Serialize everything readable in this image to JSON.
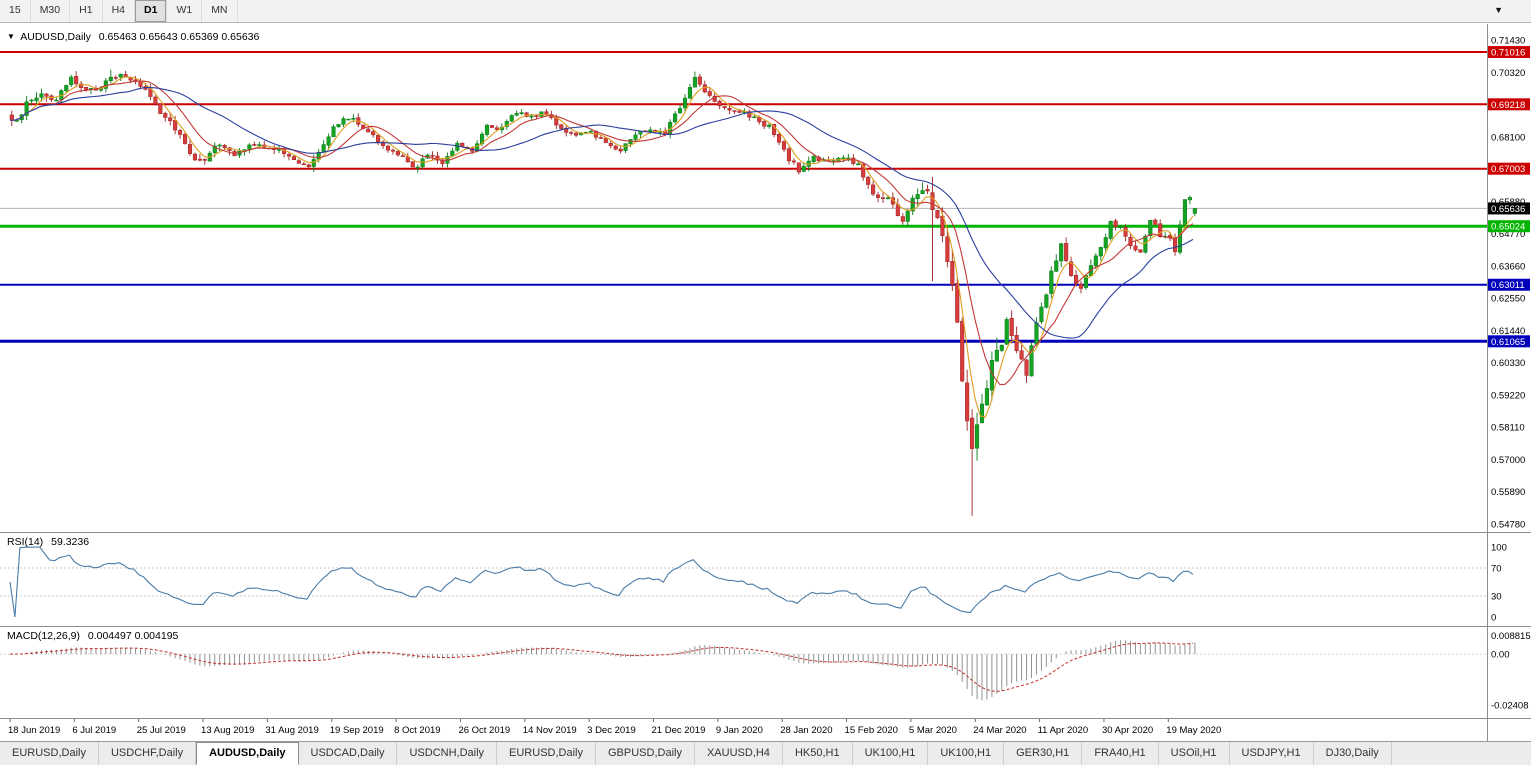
{
  "toolbar": {
    "timeframes": [
      "15",
      "M30",
      "H1",
      "H4",
      "D1",
      "W1",
      "MN"
    ],
    "active": "D1"
  },
  "chart_header": {
    "title": "AUDUSD,Daily",
    "ohlc": "0.65463 0.65643 0.65369 0.65636"
  },
  "price_axis": {
    "max": 0.7143,
    "min": 0.5478,
    "step": 0.0111,
    "decimals": 5
  },
  "levels": [
    {
      "value": 0.71016,
      "color": "#cc0000",
      "width": 2
    },
    {
      "value": 0.69218,
      "color": "#cc0000",
      "width": 2
    },
    {
      "value": 0.67003,
      "color": "#cc0000",
      "width": 2
    },
    {
      "value": 0.65024,
      "color": "#00b400",
      "width": 3
    },
    {
      "value": 0.63011,
      "color": "#0000bb",
      "width": 2
    },
    {
      "value": 0.61065,
      "color": "#0000bb",
      "width": 3
    }
  ],
  "bid": {
    "value": 0.65636,
    "line_color": "#b4b4b4",
    "label_bg": "#000000"
  },
  "indicators": {
    "rsi": {
      "label": "RSI(14)",
      "value": "59.3236",
      "axis": [
        100,
        70,
        30,
        0
      ],
      "guides": [
        70,
        30
      ],
      "line_color": "#4a7ba8"
    },
    "macd": {
      "label": "MACD(12,26,9)",
      "value": "0.004497 0.004195",
      "axis": [
        {
          "v": 0.008815,
          "t": "0.008815"
        },
        {
          "v": 0,
          "t": "0.00"
        },
        {
          "v": -0.02408,
          "t": "-0.02408"
        }
      ],
      "histogram_color": "#909090",
      "signal_color": "#c03030"
    }
  },
  "time_axis": {
    "step": 13,
    "dates": [
      "18 Jun 2019",
      "6 Jul 2019",
      "25 Jul 2019",
      "13 Aug 2019",
      "31 Aug 2019",
      "19 Sep 2019",
      "8 Oct 2019",
      "26 Oct 2019",
      "14 Nov 2019",
      "3 Dec 2019",
      "21 Dec 2019",
      "9 Jan 2020",
      "28 Jan 2020",
      "15 Feb 2020",
      "5 Mar 2020",
      "24 Mar 2020",
      "11 Apr 2020",
      "30 Apr 2020",
      "19 May 2020"
    ]
  },
  "tabs": [
    {
      "label": "EURUSD,Daily"
    },
    {
      "label": "USDCHF,Daily"
    },
    {
      "label": "AUDUSD,Daily",
      "active": true
    },
    {
      "label": "USDCAD,Daily"
    },
    {
      "label": "USDCNH,Daily"
    },
    {
      "label": "EURUSD,Daily"
    },
    {
      "label": "GBPUSD,Daily"
    },
    {
      "label": "XAUUSD,H4"
    },
    {
      "label": "HK50,H1"
    },
    {
      "label": "UK100,H1"
    },
    {
      "label": "UK100,H1"
    },
    {
      "label": "GER30,H1"
    },
    {
      "label": "FRA40,H1"
    },
    {
      "label": "USOil,H1"
    },
    {
      "label": "USDJPY,H1"
    },
    {
      "label": "DJ30,Daily"
    }
  ],
  "colors": {
    "bull": "#14a424",
    "bull_dark": "#0b7a18",
    "bear": "#d83c3c",
    "bear_dark": "#9c2323",
    "background": "#ffffff",
    "panel_border": "#8c8c8c"
  },
  "chart_data": {
    "type": "candlestick",
    "symbol": "AUDUSD",
    "timeframe": "Daily",
    "num_candles": 240,
    "rsi_period": 14,
    "macd": {
      "fast": 12,
      "slow": 26,
      "signal": 9
    },
    "moving_averages": [
      {
        "period": 5,
        "color": "#dd9f20"
      },
      {
        "period": 10,
        "color": "#c23a3a"
      },
      {
        "period": 25,
        "color": "#2b3f9e"
      }
    ],
    "keyframes": [
      [
        0,
        0.6855,
        0.0045
      ],
      [
        3,
        0.692,
        0.0042
      ],
      [
        6,
        0.696,
        0.004
      ],
      [
        9,
        0.6935,
        0.0038
      ],
      [
        12,
        0.7005,
        0.0038
      ],
      [
        14,
        0.6988,
        0.0035
      ],
      [
        17,
        0.696,
        0.0035
      ],
      [
        20,
        0.7025,
        0.0034
      ],
      [
        24,
        0.7008,
        0.003
      ],
      [
        27,
        0.6975,
        0.0034
      ],
      [
        30,
        0.69,
        0.0038
      ],
      [
        33,
        0.6845,
        0.004
      ],
      [
        36,
        0.6762,
        0.0048
      ],
      [
        38,
        0.6718,
        0.0048
      ],
      [
        41,
        0.6785,
        0.0038
      ],
      [
        45,
        0.6748,
        0.0034
      ],
      [
        48,
        0.6778,
        0.003
      ],
      [
        52,
        0.6778,
        0.003
      ],
      [
        55,
        0.6752,
        0.0034
      ],
      [
        57,
        0.6728,
        0.0034
      ],
      [
        60,
        0.6712,
        0.0038
      ],
      [
        63,
        0.6792,
        0.0038
      ],
      [
        66,
        0.6862,
        0.0034
      ],
      [
        69,
        0.6876,
        0.003
      ],
      [
        72,
        0.6832,
        0.0034
      ],
      [
        75,
        0.6772,
        0.0034
      ],
      [
        78,
        0.6752,
        0.003
      ],
      [
        81,
        0.6702,
        0.0038
      ],
      [
        84,
        0.6745,
        0.0034
      ],
      [
        87,
        0.6725,
        0.003
      ],
      [
        90,
        0.6788,
        0.003
      ],
      [
        93,
        0.6765,
        0.0028
      ],
      [
        96,
        0.6852,
        0.0032
      ],
      [
        99,
        0.6838,
        0.0028
      ],
      [
        102,
        0.6896,
        0.0028
      ],
      [
        105,
        0.6882,
        0.0026
      ],
      [
        108,
        0.6892,
        0.0026
      ],
      [
        111,
        0.684,
        0.0028
      ],
      [
        114,
        0.681,
        0.0026
      ],
      [
        117,
        0.6828,
        0.0024
      ],
      [
        120,
        0.679,
        0.0026
      ],
      [
        123,
        0.6765,
        0.0026
      ],
      [
        126,
        0.682,
        0.0028
      ],
      [
        129,
        0.6838,
        0.0026
      ],
      [
        132,
        0.6825,
        0.0026
      ],
      [
        135,
        0.6912,
        0.0036
      ],
      [
        138,
        0.7015,
        0.0034
      ],
      [
        141,
        0.6952,
        0.0034
      ],
      [
        144,
        0.6912,
        0.003
      ],
      [
        147,
        0.6898,
        0.0028
      ],
      [
        150,
        0.6872,
        0.0028
      ],
      [
        153,
        0.6845,
        0.003
      ],
      [
        156,
        0.6758,
        0.0036
      ],
      [
        159,
        0.6692,
        0.0038
      ],
      [
        162,
        0.6742,
        0.0034
      ],
      [
        165,
        0.6722,
        0.003
      ],
      [
        168,
        0.674,
        0.0028
      ],
      [
        171,
        0.6712,
        0.0034
      ],
      [
        174,
        0.6612,
        0.0042
      ],
      [
        177,
        0.66,
        0.0038
      ],
      [
        180,
        0.652,
        0.0052
      ],
      [
        183,
        0.6622,
        0.006
      ],
      [
        185,
        0.664,
        0.0058
      ],
      [
        186,
        0.6578,
        0.011
      ],
      [
        188,
        0.649,
        0.0085
      ],
      [
        190,
        0.6318,
        0.0105
      ],
      [
        192,
        0.5985,
        0.0125
      ],
      [
        194,
        0.5742,
        0.0155
      ],
      [
        195,
        0.5805,
        0.0115
      ],
      [
        197,
        0.5968,
        0.0105
      ],
      [
        199,
        0.6068,
        0.0088
      ],
      [
        201,
        0.6168,
        0.0078
      ],
      [
        203,
        0.6068,
        0.0072
      ],
      [
        205,
        0.5995,
        0.0068
      ],
      [
        207,
        0.6162,
        0.0062
      ],
      [
        210,
        0.6342,
        0.0058
      ],
      [
        212,
        0.6438,
        0.0052
      ],
      [
        214,
        0.6325,
        0.0048
      ],
      [
        216,
        0.6292,
        0.0044
      ],
      [
        219,
        0.6388,
        0.0044
      ],
      [
        222,
        0.6518,
        0.0042
      ],
      [
        224,
        0.6508,
        0.0038
      ],
      [
        226,
        0.6428,
        0.0038
      ],
      [
        228,
        0.6402,
        0.0038
      ],
      [
        230,
        0.6528,
        0.0036
      ],
      [
        232,
        0.6472,
        0.0035
      ],
      [
        234,
        0.6458,
        0.0035
      ],
      [
        235,
        0.6418,
        0.0035
      ],
      [
        237,
        0.6592,
        0.0035
      ],
      [
        238,
        0.6598,
        0.0031
      ],
      [
        239,
        0.65636,
        0.003
      ]
    ],
    "overrides": {
      "lows": {
        "186": 0.6313,
        "194": 0.5506
      },
      "highs": {
        "20": 0.7041,
        "138": 0.7034
      },
      "last": {
        "open": 0.65463,
        "high": 0.65643,
        "low": 0.65369,
        "close": 0.65636
      }
    }
  }
}
